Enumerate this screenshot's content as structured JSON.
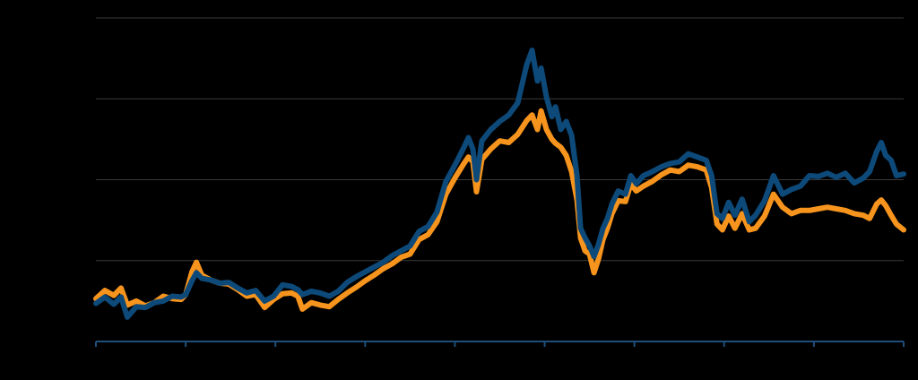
{
  "chart_data": {
    "type": "line",
    "title": "",
    "xlabel": "",
    "ylabel": "",
    "tick_labels_visible": false,
    "grid": "horizontal",
    "xlim": [
      0,
      9
    ],
    "ylim": [
      0,
      4
    ],
    "x_tick_count": 10,
    "gridline_values": [
      1,
      2,
      3,
      4
    ],
    "colors": {
      "background": "#000000",
      "gridline": "#3a3a3a",
      "axis": "#1f4e79"
    },
    "series": [
      {
        "color": "#f7941d",
        "points": [
          [
            0.0,
            0.53
          ],
          [
            0.1,
            0.63
          ],
          [
            0.2,
            0.57
          ],
          [
            0.28,
            0.66
          ],
          [
            0.35,
            0.45
          ],
          [
            0.45,
            0.5
          ],
          [
            0.55,
            0.44
          ],
          [
            0.65,
            0.48
          ],
          [
            0.75,
            0.56
          ],
          [
            0.85,
            0.53
          ],
          [
            0.95,
            0.52
          ],
          [
            1.0,
            0.58
          ],
          [
            1.07,
            0.86
          ],
          [
            1.12,
            0.98
          ],
          [
            1.18,
            0.82
          ],
          [
            1.28,
            0.76
          ],
          [
            1.38,
            0.72
          ],
          [
            1.48,
            0.71
          ],
          [
            1.58,
            0.64
          ],
          [
            1.68,
            0.56
          ],
          [
            1.78,
            0.58
          ],
          [
            1.88,
            0.42
          ],
          [
            1.98,
            0.52
          ],
          [
            2.08,
            0.59
          ],
          [
            2.18,
            0.6
          ],
          [
            2.25,
            0.56
          ],
          [
            2.3,
            0.4
          ],
          [
            2.4,
            0.48
          ],
          [
            2.5,
            0.45
          ],
          [
            2.6,
            0.43
          ],
          [
            2.7,
            0.52
          ],
          [
            2.8,
            0.6
          ],
          [
            2.9,
            0.67
          ],
          [
            3.0,
            0.75
          ],
          [
            3.1,
            0.82
          ],
          [
            3.2,
            0.9
          ],
          [
            3.3,
            0.96
          ],
          [
            3.4,
            1.04
          ],
          [
            3.5,
            1.08
          ],
          [
            3.6,
            1.26
          ],
          [
            3.7,
            1.32
          ],
          [
            3.8,
            1.48
          ],
          [
            3.9,
            1.82
          ],
          [
            4.0,
            2.02
          ],
          [
            4.1,
            2.2
          ],
          [
            4.15,
            2.28
          ],
          [
            4.2,
            2.22
          ],
          [
            4.24,
            1.85
          ],
          [
            4.3,
            2.25
          ],
          [
            4.4,
            2.38
          ],
          [
            4.5,
            2.48
          ],
          [
            4.6,
            2.46
          ],
          [
            4.7,
            2.56
          ],
          [
            4.8,
            2.73
          ],
          [
            4.86,
            2.8
          ],
          [
            4.92,
            2.62
          ],
          [
            4.96,
            2.85
          ],
          [
            5.02,
            2.62
          ],
          [
            5.08,
            2.5
          ],
          [
            5.12,
            2.45
          ],
          [
            5.18,
            2.4
          ],
          [
            5.24,
            2.3
          ],
          [
            5.3,
            2.1
          ],
          [
            5.36,
            1.75
          ],
          [
            5.4,
            1.28
          ],
          [
            5.45,
            1.12
          ],
          [
            5.5,
            1.08
          ],
          [
            5.55,
            0.85
          ],
          [
            5.6,
            1.02
          ],
          [
            5.65,
            1.26
          ],
          [
            5.7,
            1.4
          ],
          [
            5.75,
            1.58
          ],
          [
            5.82,
            1.74
          ],
          [
            5.9,
            1.73
          ],
          [
            5.96,
            1.95
          ],
          [
            6.02,
            1.86
          ],
          [
            6.1,
            1.92
          ],
          [
            6.2,
            1.98
          ],
          [
            6.3,
            2.06
          ],
          [
            6.4,
            2.12
          ],
          [
            6.5,
            2.1
          ],
          [
            6.6,
            2.18
          ],
          [
            6.7,
            2.16
          ],
          [
            6.8,
            2.12
          ],
          [
            6.86,
            1.9
          ],
          [
            6.92,
            1.45
          ],
          [
            6.98,
            1.38
          ],
          [
            7.05,
            1.55
          ],
          [
            7.12,
            1.4
          ],
          [
            7.2,
            1.58
          ],
          [
            7.28,
            1.38
          ],
          [
            7.35,
            1.4
          ],
          [
            7.45,
            1.55
          ],
          [
            7.55,
            1.82
          ],
          [
            7.65,
            1.66
          ],
          [
            7.75,
            1.58
          ],
          [
            7.85,
            1.62
          ],
          [
            7.95,
            1.62
          ],
          [
            8.05,
            1.64
          ],
          [
            8.15,
            1.66
          ],
          [
            8.25,
            1.64
          ],
          [
            8.35,
            1.62
          ],
          [
            8.45,
            1.58
          ],
          [
            8.55,
            1.56
          ],
          [
            8.62,
            1.52
          ],
          [
            8.7,
            1.7
          ],
          [
            8.75,
            1.75
          ],
          [
            8.8,
            1.68
          ],
          [
            8.86,
            1.56
          ],
          [
            8.92,
            1.45
          ],
          [
            9.0,
            1.38
          ]
        ]
      },
      {
        "color": "#0d4a7a",
        "points": [
          [
            0.0,
            0.47
          ],
          [
            0.1,
            0.55
          ],
          [
            0.2,
            0.46
          ],
          [
            0.28,
            0.55
          ],
          [
            0.35,
            0.3
          ],
          [
            0.45,
            0.43
          ],
          [
            0.55,
            0.42
          ],
          [
            0.65,
            0.48
          ],
          [
            0.75,
            0.5
          ],
          [
            0.85,
            0.56
          ],
          [
            0.95,
            0.55
          ],
          [
            1.0,
            0.58
          ],
          [
            1.07,
            0.75
          ],
          [
            1.12,
            0.85
          ],
          [
            1.18,
            0.78
          ],
          [
            1.28,
            0.76
          ],
          [
            1.38,
            0.72
          ],
          [
            1.48,
            0.73
          ],
          [
            1.58,
            0.66
          ],
          [
            1.68,
            0.6
          ],
          [
            1.78,
            0.63
          ],
          [
            1.88,
            0.5
          ],
          [
            1.98,
            0.56
          ],
          [
            2.08,
            0.7
          ],
          [
            2.18,
            0.68
          ],
          [
            2.25,
            0.64
          ],
          [
            2.3,
            0.58
          ],
          [
            2.4,
            0.62
          ],
          [
            2.5,
            0.6
          ],
          [
            2.6,
            0.56
          ],
          [
            2.7,
            0.62
          ],
          [
            2.8,
            0.73
          ],
          [
            2.9,
            0.8
          ],
          [
            3.0,
            0.86
          ],
          [
            3.1,
            0.92
          ],
          [
            3.2,
            0.98
          ],
          [
            3.3,
            1.06
          ],
          [
            3.4,
            1.12
          ],
          [
            3.5,
            1.18
          ],
          [
            3.6,
            1.36
          ],
          [
            3.7,
            1.42
          ],
          [
            3.8,
            1.6
          ],
          [
            3.9,
            1.98
          ],
          [
            4.0,
            2.18
          ],
          [
            4.1,
            2.4
          ],
          [
            4.15,
            2.52
          ],
          [
            4.2,
            2.38
          ],
          [
            4.24,
            2.0
          ],
          [
            4.3,
            2.48
          ],
          [
            4.4,
            2.62
          ],
          [
            4.5,
            2.72
          ],
          [
            4.6,
            2.8
          ],
          [
            4.7,
            2.95
          ],
          [
            4.8,
            3.42
          ],
          [
            4.86,
            3.6
          ],
          [
            4.92,
            3.22
          ],
          [
            4.96,
            3.38
          ],
          [
            5.02,
            3.02
          ],
          [
            5.08,
            2.78
          ],
          [
            5.12,
            2.9
          ],
          [
            5.18,
            2.62
          ],
          [
            5.24,
            2.72
          ],
          [
            5.3,
            2.55
          ],
          [
            5.36,
            2.05
          ],
          [
            5.4,
            1.4
          ],
          [
            5.45,
            1.28
          ],
          [
            5.5,
            1.18
          ],
          [
            5.55,
            1.05
          ],
          [
            5.6,
            1.2
          ],
          [
            5.65,
            1.4
          ],
          [
            5.7,
            1.52
          ],
          [
            5.75,
            1.7
          ],
          [
            5.82,
            1.86
          ],
          [
            5.9,
            1.82
          ],
          [
            5.96,
            2.05
          ],
          [
            6.02,
            1.95
          ],
          [
            6.1,
            2.05
          ],
          [
            6.2,
            2.1
          ],
          [
            6.3,
            2.16
          ],
          [
            6.4,
            2.2
          ],
          [
            6.5,
            2.22
          ],
          [
            6.6,
            2.32
          ],
          [
            6.7,
            2.28
          ],
          [
            6.8,
            2.24
          ],
          [
            6.86,
            2.05
          ],
          [
            6.92,
            1.58
          ],
          [
            6.98,
            1.52
          ],
          [
            7.05,
            1.72
          ],
          [
            7.12,
            1.56
          ],
          [
            7.2,
            1.76
          ],
          [
            7.28,
            1.48
          ],
          [
            7.35,
            1.56
          ],
          [
            7.45,
            1.74
          ],
          [
            7.55,
            2.05
          ],
          [
            7.65,
            1.82
          ],
          [
            7.75,
            1.88
          ],
          [
            7.85,
            1.92
          ],
          [
            7.95,
            2.05
          ],
          [
            8.05,
            2.04
          ],
          [
            8.15,
            2.08
          ],
          [
            8.25,
            2.03
          ],
          [
            8.35,
            2.08
          ],
          [
            8.45,
            1.96
          ],
          [
            8.55,
            2.02
          ],
          [
            8.62,
            2.1
          ],
          [
            8.7,
            2.35
          ],
          [
            8.75,
            2.46
          ],
          [
            8.8,
            2.3
          ],
          [
            8.86,
            2.24
          ],
          [
            8.92,
            2.05
          ],
          [
            9.0,
            2.07
          ]
        ]
      }
    ]
  }
}
